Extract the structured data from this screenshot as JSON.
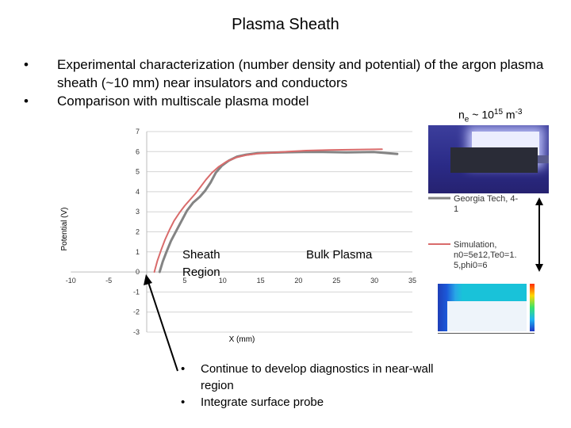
{
  "title": "Plasma Sheath",
  "bullets": [
    "Experimental characterization (number density and potential) of the argon plasma sheath (~10 mm) near insulators and conductors",
    "Comparison with multiscale plasma model"
  ],
  "bullet_glyph": "•",
  "density": {
    "base": "n",
    "sub": "e",
    "mid": " ~ 10",
    "exp": "15",
    "unit": " m",
    "unit_exp": "-3"
  },
  "regions": {
    "sheath_line1": "Sheath",
    "sheath_line2": "Region",
    "bulk": "Bulk Plasma"
  },
  "bottom_bullets": [
    "Continue to develop diagnostics in near-wall region",
    "Integrate surface probe"
  ],
  "chart_data": {
    "type": "line",
    "xlabel": "X (mm)",
    "ylabel": "Potential (V)",
    "xlim": [
      -10,
      35
    ],
    "ylim": [
      -3,
      7
    ],
    "x_ticks": [
      -10,
      -5,
      0,
      5,
      10,
      15,
      20,
      25,
      30,
      35
    ],
    "y_ticks": [
      -3,
      -2,
      -1,
      0,
      1,
      2,
      3,
      4,
      5,
      6,
      7
    ],
    "y_tick_labels": [
      "-3",
      "-2",
      "-1",
      "0",
      "1",
      "2",
      "3",
      "4",
      "5",
      "6",
      "7"
    ],
    "grid": true,
    "legend_position": "right",
    "series": [
      {
        "name": "Georgia Tech, 4-1",
        "color": "#848484",
        "width": 3,
        "x": [
          1.7,
          2.1,
          2.6,
          3.2,
          3.9,
          4.6,
          5.3,
          6.1,
          7.0,
          7.7,
          8.4,
          9.1,
          9.9,
          10.8,
          11.9,
          13.1,
          14.6,
          16.3,
          18.3,
          20.6,
          23.2,
          26.3,
          29.9,
          33.0
        ],
        "y": [
          0.0,
          0.5,
          1.0,
          1.55,
          2.05,
          2.55,
          3.05,
          3.45,
          3.75,
          4.05,
          4.45,
          4.95,
          5.3,
          5.55,
          5.75,
          5.85,
          5.92,
          5.95,
          5.97,
          5.98,
          5.98,
          5.96,
          5.98,
          5.88
        ]
      },
      {
        "name": "Simulation, n0=5e12,Te0=1.5,phi0=6",
        "color": "#d96b6b",
        "width": 2,
        "x": [
          1.0,
          1.4,
          1.9,
          2.4,
          3.0,
          3.6,
          4.3,
          5.0,
          5.7,
          6.4,
          7.1,
          7.8,
          8.6,
          9.5,
          10.5,
          11.7,
          13.0,
          14.6,
          16.4,
          18.6,
          21.0,
          24.0,
          27.5,
          31.0
        ],
        "y": [
          0.0,
          0.55,
          1.1,
          1.6,
          2.1,
          2.55,
          2.95,
          3.3,
          3.6,
          3.9,
          4.25,
          4.6,
          4.95,
          5.25,
          5.5,
          5.7,
          5.82,
          5.9,
          5.95,
          6.0,
          6.05,
          6.08,
          6.1,
          6.12
        ]
      }
    ]
  }
}
